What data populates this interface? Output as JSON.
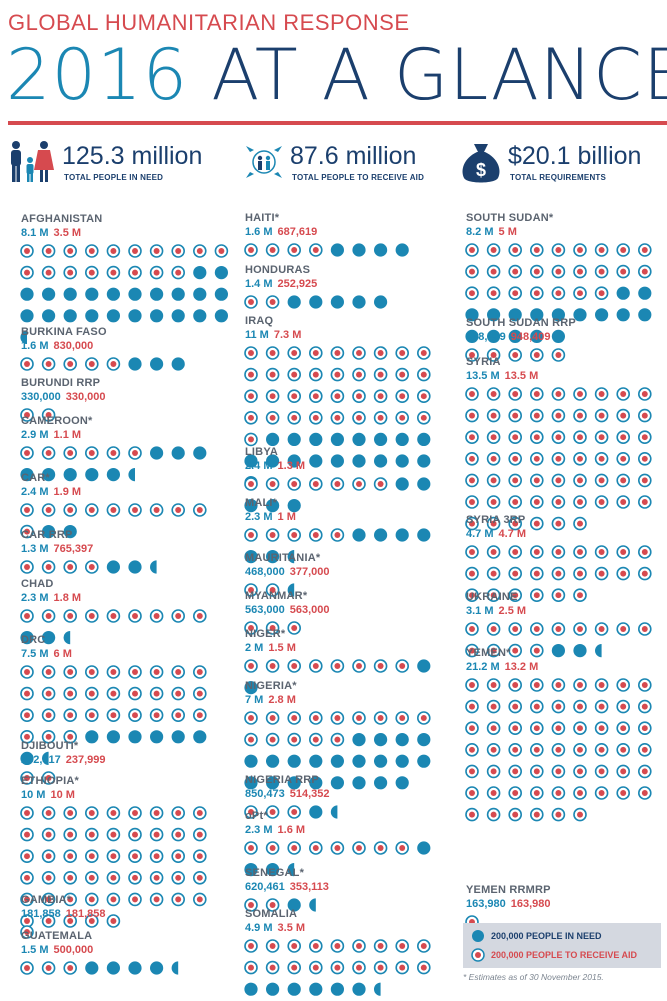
{
  "header": {
    "kicker": "GLOBAL HUMANITARIAN RESPONSE",
    "title_year": "2016",
    "title_rest": " AT A GLANCE"
  },
  "kpis": [
    {
      "value": "125.3 million",
      "caption": "TOTAL PEOPLE IN NEED",
      "icon": "family-icon"
    },
    {
      "value": "87.6 million",
      "caption": "TOTAL PEOPLE TO RECEIVE AID",
      "icon": "aid-people-icon"
    },
    {
      "value": "$20.1 billion",
      "caption": "TOTAL REQUIREMENTS",
      "icon": "money-bag-icon"
    }
  ],
  "colors": {
    "need": "#1b87b3",
    "aid": "#d64a4f",
    "navy": "#1b3f6d",
    "ring": "#1b87b3"
  },
  "legend": {
    "need_label": "200,000 PEOPLE IN NEED",
    "aid_label": "200,000 PEOPLE TO RECEIVE AID"
  },
  "footnote": "* Estimates as of 30 November 2015.",
  "chart_data": {
    "type": "pictogram",
    "unit_people": 200000,
    "countries": [
      {
        "name": "AFGHANISTAN",
        "need": "8.1 M",
        "aid": "3.5 M",
        "need_value": 8100000,
        "aid_value": 3500000
      },
      {
        "name": "BURKINA FASO",
        "need": "1.6 M",
        "aid": "830,000",
        "need_value": 1600000,
        "aid_value": 830000
      },
      {
        "name": "BURUNDI RRP",
        "need": "330,000",
        "aid": "330,000",
        "need_value": 330000,
        "aid_value": 330000
      },
      {
        "name": "CAMEROON*",
        "need": "2.9 M",
        "aid": "1.1 M",
        "need_value": 2900000,
        "aid_value": 1100000
      },
      {
        "name": "CAR*",
        "need": "2.4 M",
        "aid": "1.9 M",
        "need_value": 2400000,
        "aid_value": 1900000
      },
      {
        "name": "CAR RRP",
        "need": "1.3 M",
        "aid": "765,397",
        "need_value": 1300000,
        "aid_value": 765397
      },
      {
        "name": "CHAD",
        "need": "2.3 M",
        "aid": "1.8 M",
        "need_value": 2300000,
        "aid_value": 1800000
      },
      {
        "name": "DRC",
        "need": "7.5 M",
        "aid": "6 M",
        "need_value": 7500000,
        "aid_value": 6000000
      },
      {
        "name": "DJIBOUTI*",
        "need": "282,417",
        "aid": "237,999",
        "need_value": 282417,
        "aid_value": 237999
      },
      {
        "name": "ETHIOPIA*",
        "need": "10 M",
        "aid": "10 M",
        "need_value": 10000000,
        "aid_value": 10000000
      },
      {
        "name": "GAMBIA*",
        "need": "181,858",
        "aid": "181,858",
        "need_value": 181858,
        "aid_value": 181858
      },
      {
        "name": "GUATEMALA",
        "need": "1.5 M",
        "aid": "500,000",
        "need_value": 1500000,
        "aid_value": 500000
      },
      {
        "name": "HAITI*",
        "need": "1.6 M",
        "aid": "687,619",
        "need_value": 1600000,
        "aid_value": 687619
      },
      {
        "name": "HONDURAS",
        "need": "1.4 M",
        "aid": "252,925",
        "need_value": 1400000,
        "aid_value": 252925
      },
      {
        "name": "IRAQ",
        "need": "11 M",
        "aid": "7.3 M",
        "need_value": 11000000,
        "aid_value": 7300000
      },
      {
        "name": "LIBYA",
        "need": "2.4 M",
        "aid": "1.3 M",
        "need_value": 2400000,
        "aid_value": 1300000
      },
      {
        "name": "MALI*",
        "need": "2.3 M",
        "aid": "1 M",
        "need_value": 2300000,
        "aid_value": 1000000
      },
      {
        "name": "MAURITANIA*",
        "need": "468,000",
        "aid": "377,000",
        "need_value": 468000,
        "aid_value": 377000
      },
      {
        "name": "MYANMAR*",
        "need": "563,000",
        "aid": "563,000",
        "need_value": 563000,
        "aid_value": 563000
      },
      {
        "name": "NIGER*",
        "need": "2 M",
        "aid": "1.5 M",
        "need_value": 2000000,
        "aid_value": 1500000
      },
      {
        "name": "NIGERIA*",
        "need": "7 M",
        "aid": "2.8 M",
        "need_value": 7000000,
        "aid_value": 2800000
      },
      {
        "name": "NIGERIA RRP",
        "need": "850,473",
        "aid": "514,352",
        "need_value": 850473,
        "aid_value": 514352
      },
      {
        "name": "oPt*",
        "need": "2.3 M",
        "aid": "1.6 M",
        "need_value": 2300000,
        "aid_value": 1600000
      },
      {
        "name": "SENEGAL*",
        "need": "620,461",
        "aid": "353,113",
        "need_value": 620461,
        "aid_value": 353113
      },
      {
        "name": "SOMALIA",
        "need": "4.9 M",
        "aid": "3.5 M",
        "need_value": 4900000,
        "aid_value": 3500000
      },
      {
        "name": "SOUTH SUDAN*",
        "need": "8.2 M",
        "aid": "5 M",
        "need_value": 8200000,
        "aid_value": 5000000
      },
      {
        "name": "SOUTH SUDAN RRP",
        "need": "948,409",
        "aid": "948,409",
        "need_value": 948409,
        "aid_value": 948409
      },
      {
        "name": "SYRIA",
        "need": "13.5 M",
        "aid": "13.5 M",
        "need_value": 13500000,
        "aid_value": 13500000
      },
      {
        "name": "SYRIA 3RP",
        "need": "4.7 M",
        "aid": "4.7 M",
        "need_value": 4700000,
        "aid_value": 4700000
      },
      {
        "name": "UKRAINE",
        "need": "3.1 M",
        "aid": "2.5 M",
        "need_value": 3100000,
        "aid_value": 2500000
      },
      {
        "name": "YEMEN*",
        "need": "21.2 M",
        "aid": "13.2 M",
        "need_value": 21200000,
        "aid_value": 13200000
      },
      {
        "name": "YEMEN RRMRP",
        "need": "163,980",
        "aid": "163,980",
        "need_value": 163980,
        "aid_value": 163980
      }
    ]
  }
}
